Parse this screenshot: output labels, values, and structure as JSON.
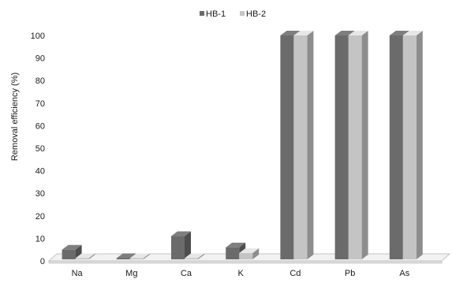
{
  "chart_data": {
    "type": "bar",
    "style": "3d-clustered-column",
    "ylabel": "Removal efficiency (%)",
    "xlabel": "",
    "ylim": [
      0,
      100
    ],
    "yticks": [
      0,
      10,
      20,
      30,
      40,
      50,
      60,
      70,
      80,
      90,
      100
    ],
    "grid": false,
    "legend_position": "top",
    "categories": [
      "Na",
      "Mg",
      "Ca",
      "K",
      "Cd",
      "Pb",
      "As"
    ],
    "series": [
      {
        "name": "HB-1",
        "color": "#6b6b6b",
        "values": [
          5,
          0.5,
          11,
          6,
          100,
          100,
          100
        ]
      },
      {
        "name": "HB-2",
        "color": "#c4c4c4",
        "values": [
          1,
          0.5,
          0.5,
          3.5,
          100,
          100,
          100
        ]
      }
    ]
  }
}
